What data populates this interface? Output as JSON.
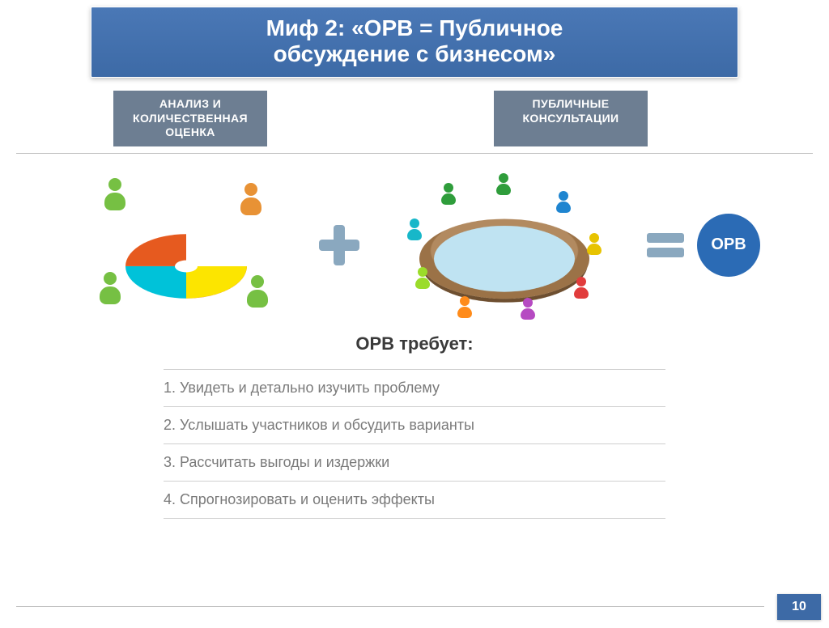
{
  "title": {
    "line1": "Миф 2: «ОРВ = Публичное",
    "line2": "обсуждение с бизнесом»",
    "bg": "#4a78b6",
    "text_color": "#ffffff",
    "font_size": 28
  },
  "tabs": {
    "left": {
      "line1": "АНАЛИЗ И",
      "line2": "КОЛИЧЕСТВЕННАЯ",
      "line3": "ОЦЕНКА"
    },
    "right": {
      "line1": "ПУБЛИЧНЫЕ",
      "line2": "КОНСУЛЬТАЦИИ"
    },
    "bg": "#6d7e92",
    "text_color": "#ffffff"
  },
  "equation": {
    "plus_color": "#8aa8bf",
    "equals_color": "#8aa8bf",
    "result_circle": {
      "label": "ОРВ",
      "bg": "#2b6bb5",
      "text_color": "#ffffff"
    }
  },
  "illustration_left": {
    "type": "pie-3d-with-workers",
    "slice_colors": [
      "#e65a1f",
      "#cc1d8e",
      "#fce500",
      "#00c2d9"
    ],
    "worker_colors": [
      "#76c043",
      "#e89235"
    ]
  },
  "illustration_right": {
    "type": "round-table-meeting",
    "table_color": "#b28a60",
    "table_top_color": "#bfe3f2",
    "seat_colors": [
      "#2f9d3b",
      "#1f85d0",
      "#e7c300",
      "#e13c3c",
      "#b64ac2",
      "#ff8b1a",
      "#9bdc2a",
      "#17b7c9",
      "#2f9d3b"
    ]
  },
  "requirements": {
    "heading": "ОРВ требует:",
    "items": [
      "1. Увидеть и детально изучить проблему",
      "2. Услышать участников и обсудить варианты",
      "3. Рассчитать выгоды и издержки",
      "4. Спрогнозировать и оценить эффекты"
    ],
    "text_color": "#7a7a7a",
    "divider_color": "#cfcfcf"
  },
  "page_number": {
    "value": "10",
    "bg": "#3d6aa6"
  }
}
